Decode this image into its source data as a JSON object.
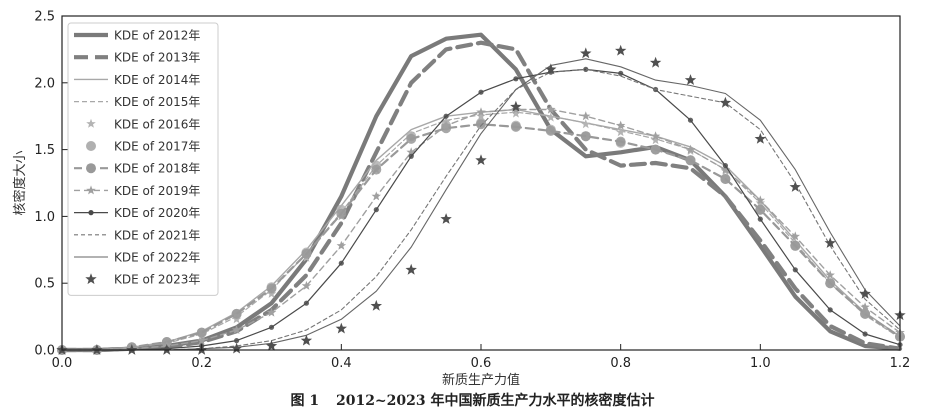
{
  "caption": {
    "figure_label": "图 1",
    "text": "2012~2023 年中国新质生产力水平的核密度估计"
  },
  "chart_data": {
    "type": "line",
    "title": "",
    "xlabel": "新质生产力值",
    "ylabel": "核密度大小",
    "xlim": [
      0.0,
      1.2
    ],
    "ylim": [
      0.0,
      2.5
    ],
    "xticks": [
      "0.0",
      "0.2",
      "0.4",
      "0.6",
      "0.8",
      "1.0",
      "1.2"
    ],
    "yticks": [
      "0.0",
      "0.5",
      "1.0",
      "1.5",
      "2.0",
      "2.5"
    ],
    "grid": false,
    "legend_position": "upper-left",
    "x": [
      0.0,
      0.05,
      0.1,
      0.15,
      0.2,
      0.25,
      0.3,
      0.35,
      0.4,
      0.45,
      0.5,
      0.55,
      0.6,
      0.65,
      0.7,
      0.75,
      0.8,
      0.85,
      0.9,
      0.95,
      1.0,
      1.05,
      1.1,
      1.15,
      1.2
    ],
    "series": [
      {
        "name": "KDE of 2012年",
        "color": "#7a7a7a",
        "style": "solid-thick",
        "values": [
          0,
          0,
          0.01,
          0.03,
          0.07,
          0.17,
          0.35,
          0.68,
          1.15,
          1.75,
          2.2,
          2.33,
          2.36,
          2.1,
          1.65,
          1.45,
          1.48,
          1.52,
          1.42,
          1.15,
          0.78,
          0.4,
          0.14,
          0.03,
          0.01
        ]
      },
      {
        "name": "KDE of 2013年",
        "color": "#808080",
        "style": "dash-thick",
        "values": [
          0,
          0,
          0.01,
          0.02,
          0.06,
          0.14,
          0.3,
          0.56,
          0.95,
          1.48,
          2.0,
          2.25,
          2.3,
          2.25,
          1.8,
          1.5,
          1.38,
          1.4,
          1.36,
          1.15,
          0.82,
          0.46,
          0.18,
          0.05,
          0.01
        ]
      },
      {
        "name": "KDE of 2014年",
        "color": "#a8a8a8",
        "style": "solid-thin",
        "values": [
          0,
          0,
          0.02,
          0.06,
          0.14,
          0.28,
          0.48,
          0.75,
          1.08,
          1.42,
          1.65,
          1.75,
          1.78,
          1.8,
          1.75,
          1.7,
          1.65,
          1.6,
          1.52,
          1.38,
          1.12,
          0.82,
          0.52,
          0.28,
          0.1
        ]
      },
      {
        "name": "KDE of 2015年",
        "color": "#a8a8a8",
        "style": "dash-thin",
        "values": [
          0,
          0,
          0.02,
          0.05,
          0.12,
          0.25,
          0.45,
          0.72,
          1.03,
          1.38,
          1.62,
          1.72,
          1.76,
          1.78,
          1.75,
          1.7,
          1.64,
          1.58,
          1.5,
          1.35,
          1.1,
          0.8,
          0.5,
          0.26,
          0.09
        ]
      },
      {
        "name": "KDE of 2016年",
        "color": "#b4b4b4",
        "style": "star-small",
        "values": [
          0,
          0,
          0.02,
          0.05,
          0.11,
          0.23,
          0.42,
          0.69,
          1.0,
          1.35,
          1.6,
          1.71,
          1.75,
          1.77,
          1.74,
          1.69,
          1.63,
          1.57,
          1.49,
          1.34,
          1.1,
          0.8,
          0.5,
          0.27,
          0.1
        ]
      },
      {
        "name": "KDE of 2017年",
        "color": "#b0b0b0",
        "style": "circle-light",
        "values": [
          0,
          0,
          0.02,
          0.06,
          0.13,
          0.27,
          0.47,
          0.73,
          1.05,
          1.38,
          1.6,
          1.68,
          1.7,
          1.68,
          1.65,
          1.6,
          1.55,
          1.5,
          1.42,
          1.28,
          1.05,
          0.78,
          0.5,
          0.27,
          0.1
        ]
      },
      {
        "name": "KDE of 2018年",
        "color": "#999999",
        "style": "circle-dash",
        "values": [
          0,
          0,
          0.02,
          0.06,
          0.13,
          0.27,
          0.46,
          0.72,
          1.02,
          1.35,
          1.58,
          1.66,
          1.69,
          1.67,
          1.64,
          1.6,
          1.56,
          1.5,
          1.42,
          1.28,
          1.05,
          0.78,
          0.5,
          0.27,
          0.1
        ]
      },
      {
        "name": "KDE of 2019年",
        "color": "#a0a0a0",
        "style": "star-dash",
        "values": [
          0,
          0,
          0.01,
          0.03,
          0.07,
          0.15,
          0.28,
          0.48,
          0.78,
          1.15,
          1.48,
          1.68,
          1.78,
          1.8,
          1.8,
          1.75,
          1.68,
          1.6,
          1.5,
          1.35,
          1.12,
          0.85,
          0.56,
          0.32,
          0.13
        ]
      },
      {
        "name": "KDE of 2020年",
        "color": "#4a4a4a",
        "style": "dot-line",
        "values": [
          0,
          0,
          0,
          0.01,
          0.03,
          0.07,
          0.17,
          0.35,
          0.65,
          1.05,
          1.45,
          1.75,
          1.93,
          2.03,
          2.08,
          2.1,
          2.07,
          1.95,
          1.72,
          1.38,
          0.98,
          0.6,
          0.3,
          0.12,
          0.04
        ]
      },
      {
        "name": "KDE of 2021年",
        "color": "#777777",
        "style": "dash-thin-dark",
        "values": [
          0,
          0,
          0,
          0,
          0.01,
          0.03,
          0.07,
          0.15,
          0.3,
          0.55,
          0.9,
          1.3,
          1.68,
          1.95,
          2.08,
          2.1,
          2.05,
          1.95,
          1.9,
          1.85,
          1.65,
          1.25,
          0.78,
          0.38,
          0.15
        ]
      },
      {
        "name": "KDE of 2022年",
        "color": "#666666",
        "style": "solid-thin-dark",
        "values": [
          0,
          0,
          0,
          0,
          0.01,
          0.02,
          0.05,
          0.11,
          0.23,
          0.44,
          0.77,
          1.2,
          1.62,
          1.95,
          2.13,
          2.18,
          2.12,
          2.02,
          1.98,
          1.92,
          1.72,
          1.35,
          0.88,
          0.45,
          0.18
        ]
      },
      {
        "name": "KDE of 2023年",
        "color": "#505050",
        "style": "star-large",
        "values": [
          0,
          0,
          0,
          0,
          0,
          0.01,
          0.03,
          0.07,
          0.16,
          0.33,
          0.6,
          0.98,
          1.42,
          1.82,
          2.1,
          2.22,
          2.24,
          2.15,
          2.02,
          1.85,
          1.58,
          1.22,
          0.8,
          0.42,
          0.26
        ]
      }
    ]
  }
}
